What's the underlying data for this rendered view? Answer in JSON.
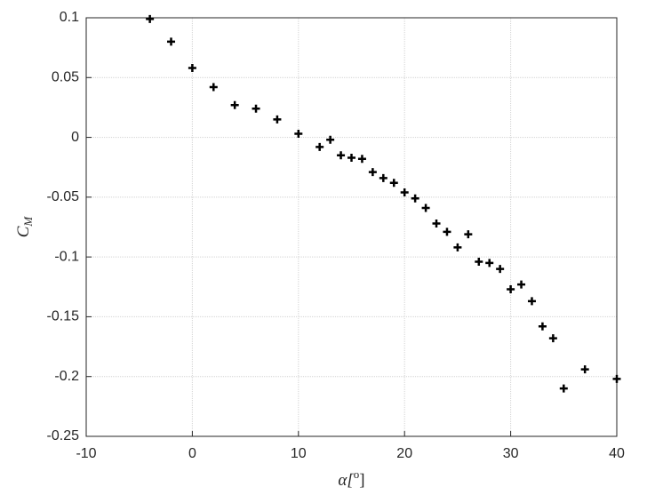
{
  "chart_data": {
    "type": "scatter",
    "xlabel": {
      "main": "α[",
      "sup": "o",
      "end": "]"
    },
    "ylabel": {
      "main": "C",
      "sub": "M"
    },
    "x": [
      -4,
      -2,
      0,
      2,
      4,
      6,
      8,
      10,
      12,
      13,
      14,
      15,
      16,
      17,
      18,
      19,
      20,
      21,
      22,
      23,
      24,
      25,
      26,
      27,
      28,
      29,
      30,
      31,
      32,
      33,
      34,
      35,
      37,
      40
    ],
    "y": [
      0.099,
      0.08,
      0.058,
      0.042,
      0.027,
      0.024,
      0.015,
      0.003,
      -0.008,
      -0.002,
      -0.015,
      -0.017,
      -0.018,
      -0.029,
      -0.034,
      -0.038,
      -0.046,
      -0.051,
      -0.059,
      -0.072,
      -0.079,
      -0.092,
      -0.081,
      -0.104,
      -0.105,
      -0.11,
      -0.127,
      -0.123,
      -0.137,
      -0.158,
      -0.168,
      -0.21,
      -0.194,
      -0.202
    ],
    "color": "#000000",
    "xlim": [
      -10,
      40
    ],
    "xticks": [
      -10,
      0,
      10,
      20,
      30,
      40
    ],
    "ylim": [
      -0.25,
      0.1
    ],
    "yticks": [
      -0.25,
      -0.2,
      -0.15,
      -0.1,
      -0.05,
      0,
      0.05,
      0.1
    ],
    "grid": true
  }
}
